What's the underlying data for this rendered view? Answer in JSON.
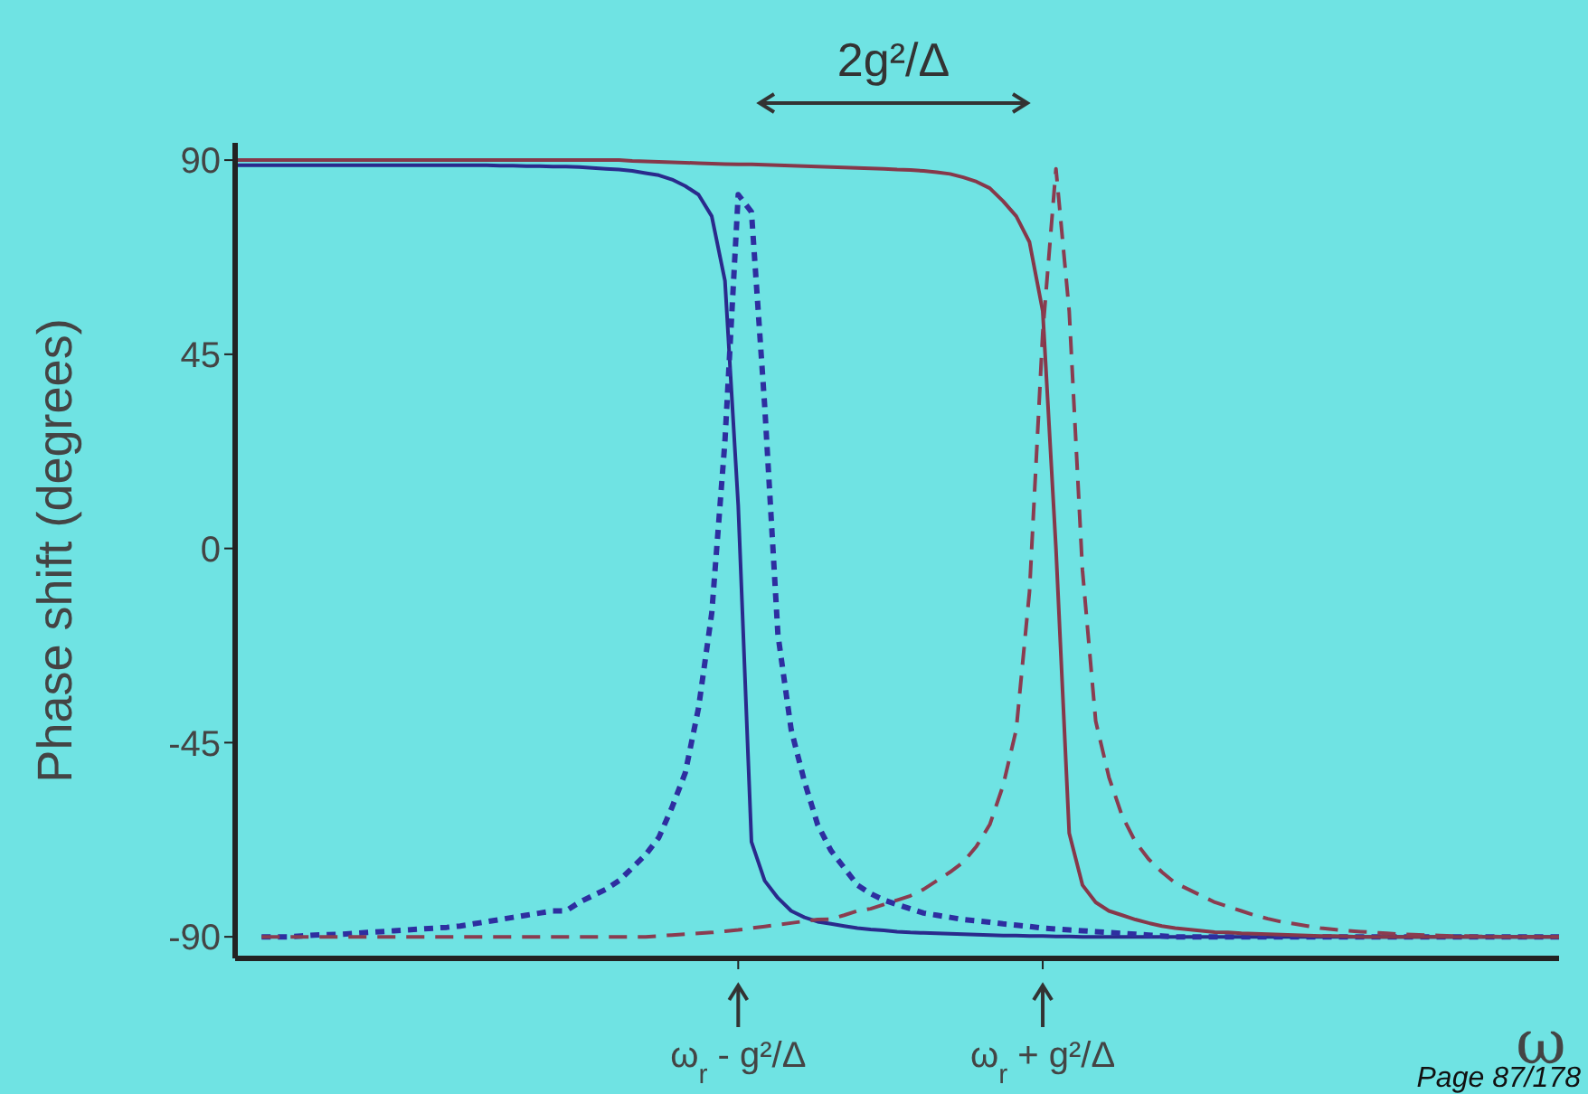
{
  "chart_data": {
    "type": "line",
    "xlabel": "ω",
    "ylabel": "Phase shift (degrees)",
    "annotations": [
      "2g²/Δ",
      "Page 87/178"
    ],
    "categories": [
      null,
      null,
      null,
      null,
      null,
      null,
      null,
      null,
      null,
      null,
      null,
      null,
      null,
      null,
      null,
      null,
      null,
      null,
      null,
      null,
      null,
      null,
      null,
      null,
      null,
      null,
      null,
      null,
      null,
      null,
      null,
      null,
      null,
      null,
      null,
      null,
      null,
      null,
      "ω$_{r}$ - g²/Δ",
      null,
      null,
      null,
      null,
      null,
      null,
      null,
      null,
      null,
      null,
      null,
      null,
      null,
      null,
      null,
      null,
      null,
      null,
      null,
      null,
      null,
      null,
      "ω$_{r}$ + g²/Δ",
      null,
      null,
      null,
      null,
      null,
      null,
      null,
      null,
      null,
      null,
      null,
      null,
      null,
      null,
      null,
      null,
      null,
      null,
      null,
      null,
      null,
      null,
      null,
      null,
      null,
      null,
      null,
      null,
      null,
      null,
      null,
      null,
      null,
      null,
      null,
      null,
      null,
      null,
      null
    ],
    "ylim": [
      -95,
      94
    ],
    "yticks": [
      90,
      45,
      0,
      -45,
      -90
    ],
    "grid": false,
    "legend": false,
    "series": [
      {
        "color": "#2a2a8c",
        "line_style": "solid",
        "values": [
          88.8,
          88.8,
          88.8,
          88.8,
          88.8,
          88.8,
          88.8,
          88.8,
          88.8,
          88.8,
          88.8,
          88.8,
          88.8,
          88.8,
          88.8,
          88.8,
          88.8,
          88.8,
          88.8,
          88.8,
          88.7,
          88.7,
          88.6,
          88.6,
          88.5,
          88.5,
          88.4,
          88.2,
          88,
          87.8,
          87.5,
          87,
          86.5,
          85.5,
          84,
          82,
          77,
          62,
          10,
          -68,
          -77,
          -81,
          -84,
          -85.5,
          -86.5,
          -87,
          -87.5,
          -88,
          -88.3,
          -88.5,
          -88.8,
          -89,
          -89.1,
          -89.2,
          -89.3,
          -89.4,
          -89.5,
          -89.6,
          -89.7,
          -89.7,
          -89.8,
          -89.8,
          -89.9,
          -89.9,
          -90,
          -90,
          -90,
          -90,
          -90,
          -90,
          -90,
          -90,
          -90,
          -90,
          -90,
          -90,
          -90,
          -90,
          -90,
          -90,
          -90,
          -90,
          -90,
          -90,
          -90,
          -90,
          -90,
          -90,
          -90,
          -90,
          -90,
          -90,
          -90,
          -90,
          -90,
          -90,
          -90,
          -90,
          -90,
          -90,
          -90
        ]
      },
      {
        "color": "#2e2ea0",
        "line_style": "dotted",
        "values": [
          null,
          null,
          -90,
          -90,
          -90,
          -89.8,
          -89.6,
          -89.5,
          -89.4,
          -89.2,
          -89,
          -88.8,
          -88.6,
          -88.4,
          -88.2,
          -88,
          -87.8,
          -87.5,
          -87,
          -86.5,
          -86,
          -85.5,
          -85,
          -84.5,
          -84,
          -84,
          -82,
          -80.5,
          -79,
          -77,
          -74,
          -71,
          -67,
          -60,
          -52,
          -37,
          -15,
          25,
          82,
          78,
          33,
          -20,
          -42,
          -54,
          -64,
          -70,
          -74,
          -78,
          -80,
          -81.5,
          -82.5,
          -83.5,
          -84.5,
          -85,
          -85.5,
          -86,
          -86.3,
          -86.6,
          -87,
          -87.3,
          -87.6,
          -88,
          -88.2,
          -88.4,
          -88.6,
          -88.8,
          -89,
          -89.2,
          -89.4,
          -89.6,
          -89.8,
          -90,
          -90,
          -90,
          -90,
          -90,
          -90,
          -90,
          -90,
          -90,
          -90,
          -90,
          -90,
          -90,
          -90,
          -90,
          -90,
          -90,
          -90,
          -90,
          -90,
          -90,
          -90,
          -90,
          -90,
          -90,
          -90,
          -90,
          -90,
          -90,
          -90
        ]
      },
      {
        "color": "#86384a",
        "line_style": "solid",
        "values": [
          90,
          90,
          90,
          90,
          90,
          90,
          90,
          90,
          90,
          90,
          90,
          90,
          90,
          90,
          90,
          90,
          90,
          90,
          90,
          90,
          90,
          90,
          90,
          90,
          90,
          90,
          90,
          90,
          90,
          90,
          89.8,
          89.7,
          89.6,
          89.5,
          89.4,
          89.3,
          89.2,
          89.1,
          89,
          89,
          88.9,
          88.8,
          88.7,
          88.6,
          88.5,
          88.4,
          88.3,
          88.2,
          88.1,
          88,
          87.8,
          87.7,
          87.5,
          87.2,
          86.8,
          86,
          85,
          83.5,
          80.5,
          77,
          71,
          55,
          0,
          -66,
          -78,
          -82,
          -84,
          -85,
          -86,
          -86.8,
          -87.5,
          -88,
          -88.3,
          -88.6,
          -88.9,
          -89,
          -89.2,
          -89.3,
          -89.4,
          -89.5,
          -89.6,
          -89.7,
          -89.8,
          -89.8,
          -89.9,
          -90,
          -90,
          -90,
          -90,
          -90,
          -90,
          -90,
          -90,
          -90,
          -90,
          -90,
          -90,
          -90,
          -90,
          -90,
          -90
        ]
      },
      {
        "color": "#8a3c50",
        "line_style": "dashed",
        "values": [
          null,
          null,
          -90,
          -90,
          -90,
          -90,
          -90,
          -90,
          -90,
          -90,
          -90,
          -90,
          -90,
          -90,
          -90,
          -90,
          -90,
          -90,
          -90,
          -90,
          -90,
          -90,
          -90,
          -90,
          -90,
          -90,
          -90,
          -90,
          -90,
          -90,
          -90,
          -90,
          -89.8,
          -89.6,
          -89.4,
          -89.2,
          -89,
          -88.7,
          -88.4,
          -88,
          -87.6,
          -87.2,
          -86.8,
          -86.4,
          -86,
          -85.9,
          -85,
          -84,
          -83.5,
          -82.5,
          -81.5,
          -80.5,
          -79,
          -77,
          -75,
          -72.7,
          -69,
          -64,
          -55,
          -42,
          -10,
          50,
          88,
          55,
          -5,
          -40,
          -53,
          -62,
          -68,
          -72,
          -75,
          -77.5,
          -79,
          -80.5,
          -82,
          -83,
          -84,
          -85,
          -85.8,
          -86.5,
          -87,
          -87.5,
          -88,
          -88.3,
          -88.6,
          -88.8,
          -89,
          -89.2,
          -89.4,
          -89.5,
          -89.6,
          -89.7,
          -89.8,
          -89.8,
          -89.9,
          -89.9,
          -90,
          -90,
          -90,
          -90,
          -90
        ]
      }
    ]
  }
}
